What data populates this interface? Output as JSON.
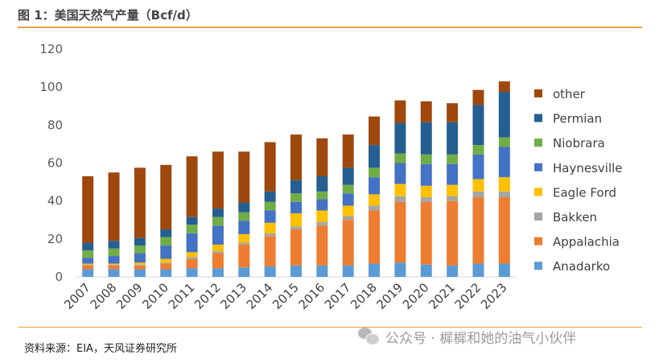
{
  "header": {
    "title": "图 1：美国天然气产量（Bcf/d）"
  },
  "footer": {
    "source": "资料来源：EIA，天风证券研究所",
    "watermark": "公众号 · 樨樨和她的油气小伙伴"
  },
  "chart_data": {
    "type": "bar",
    "stacked": true,
    "title": "图 1：美国天然气产量（Bcf/d）",
    "xlabel": "",
    "ylabel": "",
    "ylim": [
      0,
      120
    ],
    "yticks": [
      0,
      20,
      40,
      60,
      80,
      100,
      120
    ],
    "grid": false,
    "legend_position": "right",
    "categories": [
      "2007",
      "2008",
      "2009",
      "2010",
      "2011",
      "2012",
      "2013",
      "2014",
      "2015",
      "2016",
      "2017",
      "2018",
      "2019",
      "2020",
      "2021",
      "2022",
      "2023"
    ],
    "series": [
      {
        "name": "Anadarko",
        "color": "#5b9bd5",
        "values": [
          4,
          4,
          4,
          4,
          4.5,
          4.5,
          5,
          5.5,
          6,
          6,
          6,
          7,
          7.5,
          6.5,
          6,
          7,
          7
        ]
      },
      {
        "name": "Appalachia",
        "color": "#ed7d31",
        "values": [
          2,
          2,
          2,
          3,
          5,
          8,
          12,
          16,
          19,
          21,
          24,
          28,
          32,
          33,
          34,
          35,
          35
        ]
      },
      {
        "name": "Bakken",
        "color": "#a5a5a5",
        "values": [
          0.5,
          0.5,
          0.5,
          0.5,
          1,
          1,
          1,
          1.5,
          1.5,
          2,
          2,
          2.5,
          3,
          2.5,
          2.5,
          3,
          3
        ]
      },
      {
        "name": "Eagle Ford",
        "color": "#ffc000",
        "values": [
          0.5,
          0.5,
          1,
          2,
          2.5,
          3.5,
          4.5,
          5.5,
          7,
          6,
          5.5,
          6,
          6.5,
          6,
          6,
          6.5,
          7.5
        ]
      },
      {
        "name": "Haynesville",
        "color": "#4472c4",
        "values": [
          3,
          4,
          5,
          7,
          10,
          10,
          7,
          6.5,
          6,
          6,
          6.5,
          9,
          11,
          11.5,
          11,
          13,
          16
        ]
      },
      {
        "name": "Niobrara",
        "color": "#70ad47",
        "values": [
          4,
          4,
          4,
          4.5,
          4.5,
          4.5,
          4.5,
          4.5,
          4.5,
          4,
          4.5,
          5,
          5,
          5,
          5,
          5,
          5
        ]
      },
      {
        "name": "Permian",
        "color": "#255e91",
        "values": [
          4,
          4,
          4,
          4,
          4,
          4.5,
          5,
          5.5,
          7,
          8,
          9,
          12,
          16,
          17,
          17,
          21,
          24
        ]
      },
      {
        "name": "other",
        "color": "#9e480e",
        "values": [
          35,
          36,
          37,
          34,
          32,
          30,
          27,
          26,
          24,
          20,
          17.5,
          15,
          12,
          11,
          10,
          8,
          5.5
        ]
      }
    ],
    "legend_order": [
      "other",
      "Permian",
      "Niobrara",
      "Haynesville",
      "Eagle Ford",
      "Bakken",
      "Appalachia",
      "Anadarko"
    ]
  }
}
